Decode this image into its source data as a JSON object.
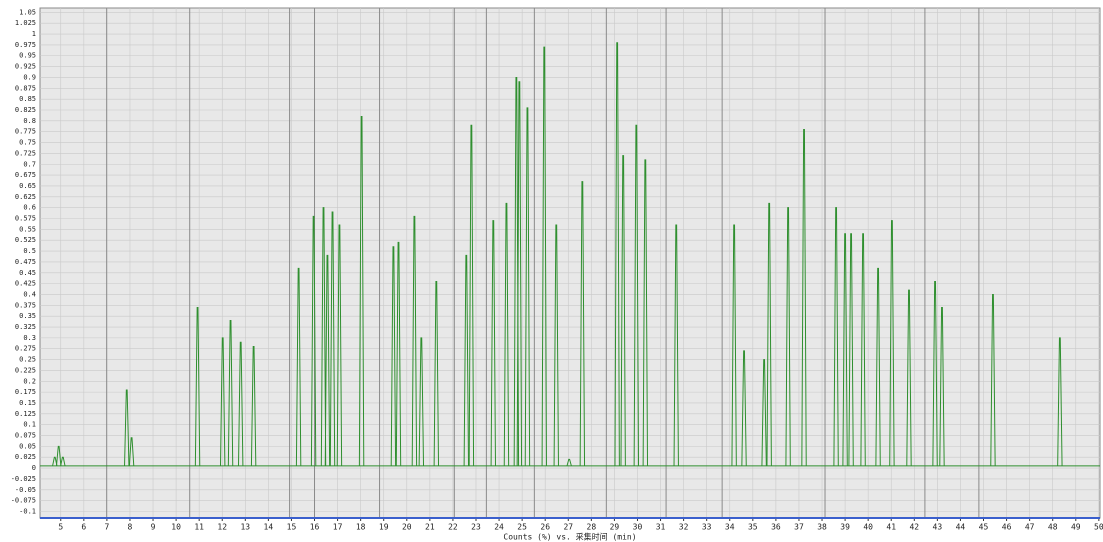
{
  "chart_data": {
    "type": "chromatogram",
    "x_label": "Counts (%) vs. 采集时间 (min)",
    "xlim": [
      4.1,
      50.05
    ],
    "ylim": [
      -0.115,
      1.06
    ],
    "xticks": [
      5,
      6,
      7,
      8,
      9,
      10,
      11,
      12,
      13,
      14,
      15,
      16,
      17,
      18,
      19,
      20,
      21,
      22,
      23,
      24,
      25,
      26,
      27,
      28,
      29,
      30,
      31,
      32,
      33,
      34,
      35,
      36,
      37,
      38,
      39,
      40,
      41,
      42,
      43,
      44,
      45,
      46,
      47,
      48,
      49,
      50
    ],
    "yticks": [
      1.05,
      1.025,
      1,
      0.975,
      0.95,
      0.925,
      0.9,
      0.875,
      0.85,
      0.825,
      0.8,
      0.775,
      0.75,
      0.725,
      0.7,
      0.675,
      0.65,
      0.625,
      0.6,
      0.575,
      0.55,
      0.525,
      0.5,
      0.475,
      0.45,
      0.425,
      0.4,
      0.375,
      0.35,
      0.325,
      0.3,
      0.275,
      0.25,
      0.225,
      0.2,
      0.175,
      0.15,
      0.125,
      0.1,
      0.075,
      0.05,
      0.025,
      0,
      -0.025,
      -0.05,
      -0.075,
      -0.1
    ],
    "grid": true,
    "segment_markers": [
      6.99,
      10.59,
      14.92,
      16.0,
      18.82,
      22.06,
      23.45,
      25.53,
      28.65,
      31.24,
      33.67,
      38.13,
      42.46,
      44.8
    ],
    "baseline": 0.005,
    "color": "#2f8f2f",
    "x": [
      4.74,
      4.91,
      5.09,
      7.86,
      8.07,
      10.93,
      12.02,
      12.36,
      12.8,
      13.36,
      15.31,
      15.96,
      16.39,
      16.56,
      16.78,
      17.08,
      18.04,
      19.42,
      19.64,
      20.33,
      20.63,
      21.28,
      22.58,
      22.8,
      23.75,
      24.32,
      24.75,
      24.88,
      25.23,
      25.96,
      26.48,
      27.04,
      27.61,
      29.12,
      29.38,
      29.95,
      30.34,
      31.68,
      34.19,
      34.62,
      35.49,
      35.71,
      36.53,
      37.22,
      38.61,
      39.0,
      39.26,
      39.78,
      40.43,
      41.03,
      41.77,
      42.9,
      43.2,
      45.41,
      48.31
    ],
    "values": [
      0.025,
      0.05,
      0.025,
      0.18,
      0.07,
      0.37,
      0.3,
      0.34,
      0.29,
      0.28,
      0.46,
      0.58,
      0.6,
      0.49,
      0.59,
      0.56,
      0.81,
      0.51,
      0.52,
      0.58,
      0.3,
      0.43,
      0.49,
      0.79,
      0.57,
      0.61,
      0.9,
      0.89,
      0.83,
      0.97,
      0.56,
      0.02,
      0.66,
      0.98,
      0.72,
      0.79,
      0.71,
      0.56,
      0.56,
      0.27,
      0.25,
      0.61,
      0.6,
      0.78,
      0.6,
      0.54,
      0.54,
      0.54,
      0.46,
      0.57,
      0.41,
      0.43,
      0.37,
      0.4,
      0.3
    ]
  }
}
